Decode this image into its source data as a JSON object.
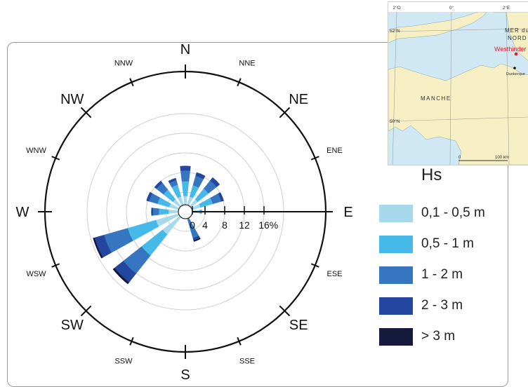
{
  "chart_data": {
    "type": "wind-rose",
    "title": "",
    "directions": [
      "N",
      "NNE",
      "NE",
      "ENE",
      "E",
      "ESE",
      "SE",
      "SSE",
      "S",
      "SSW",
      "SW",
      "WSW",
      "W",
      "WNW",
      "NW",
      "NNW"
    ],
    "radial_axis": {
      "ticks": [
        0,
        4,
        8,
        12,
        16
      ],
      "unit": "%",
      "max": 20
    },
    "series": [
      {
        "name": "0,1 - 0,5 m",
        "color": "#a6d9ec",
        "values": [
          1.8,
          1.8,
          1.8,
          1.8,
          1.5,
          0,
          0,
          0,
          0,
          0,
          4.5,
          4.8,
          2.0,
          2.0,
          1.8,
          1.8
        ]
      },
      {
        "name": "0,5 - 1 m",
        "color": "#45b9e8",
        "values": [
          3.0,
          2.4,
          2.8,
          2.6,
          0.3,
          0,
          0,
          0,
          0,
          0,
          5.5,
          6.0,
          2.0,
          2.5,
          2.5,
          2.5
        ]
      },
      {
        "name": "1 - 2 m",
        "color": "#3676c0",
        "values": [
          2.2,
          2.0,
          2.1,
          1.8,
          0.1,
          0,
          0,
          4.2,
          0,
          0,
          4.7,
          5.0,
          1.2,
          1.8,
          1.8,
          1.0
        ]
      },
      {
        "name": "2 - 3 m",
        "color": "#23479e",
        "values": [
          0.9,
          0.7,
          0.8,
          0.5,
          0,
          0,
          0,
          0.5,
          0,
          0,
          2.3,
          2.0,
          0.3,
          0.5,
          0.5,
          0.4
        ]
      },
      {
        "name": "> 3 m",
        "color": "#161a3d",
        "values": [
          0,
          0,
          0,
          0,
          0,
          0,
          0,
          0.2,
          0,
          0,
          0.4,
          0.3,
          0,
          0,
          0,
          0
        ]
      }
    ],
    "legend": {
      "title": "Hs",
      "position": "right"
    }
  },
  "inset_map": {
    "top_lon_ticks": [
      "2°O",
      "0°",
      "2°E"
    ],
    "lat_ticks": [
      "52°N",
      "50°N"
    ],
    "sea_labels": [
      "MER du",
      "NORD",
      "MANCHE"
    ],
    "site_label": "Westhinder",
    "port_label": "Dunkerque",
    "scale_labels": [
      "0",
      "100 km"
    ],
    "colors": {
      "sea": "#cfe8f3",
      "land": "#f7efc4",
      "site": "#e8192c"
    }
  }
}
